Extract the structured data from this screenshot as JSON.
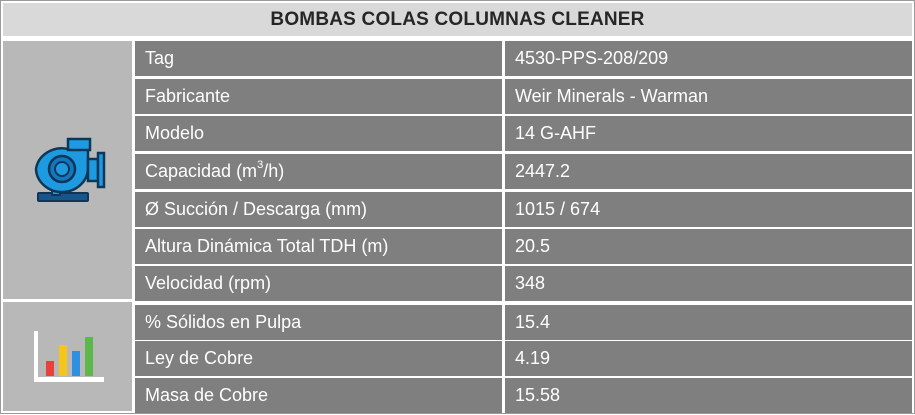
{
  "title": "BOMBAS COLAS COLUMNAS CLEANER",
  "icons": {
    "top": "pump-icon",
    "bottom": "bar-chart-icon"
  },
  "rows": [
    {
      "label": "Tag",
      "value": "4530-PPS-208/209"
    },
    {
      "label": "Fabricante",
      "value": "Weir Minerals - Warman"
    },
    {
      "label": "Modelo",
      "value": "14 G-AHF"
    },
    {
      "label_pre": "Capacidad (m",
      "label_sup": "3",
      "label_post": "/h)",
      "value": "2447.2"
    },
    {
      "label": "Ø Succión / Descarga (mm)",
      "value": "1015 / 674"
    },
    {
      "label": "Altura Dinámica Total TDH (m)",
      "value": "20.5"
    },
    {
      "label": "Velocidad (rpm)",
      "value": "348"
    },
    {
      "label": "% Sólidos en Pulpa",
      "value": "15.4"
    },
    {
      "label": "Ley de Cobre",
      "value": "4.19"
    },
    {
      "label": "Masa de Cobre",
      "value": "15.58"
    }
  ],
  "colors": {
    "header_bg": "#d9d9d9",
    "row_bg": "#7f7f7f",
    "icon_bg": "#b8b8b8",
    "pump_blue": "#1e9be0",
    "bar_red": "#e8413c",
    "bar_yellow": "#f5c518",
    "bar_blue": "#2f8fe0",
    "bar_green": "#5cb84a"
  }
}
